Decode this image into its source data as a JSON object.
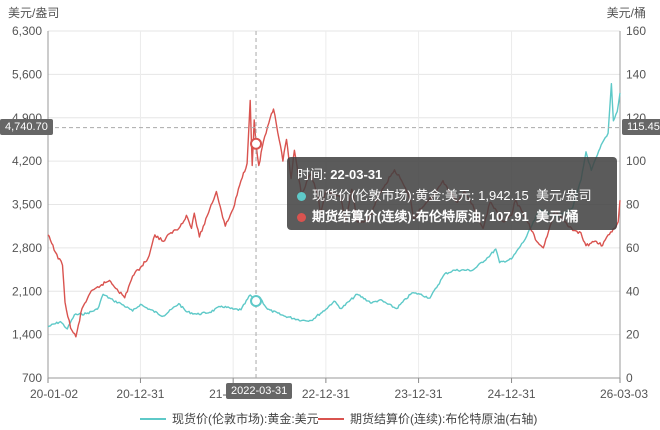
{
  "left_unit": "美元/盎司",
  "right_unit": "美元/桶",
  "chart_data": {
    "type": "line",
    "x_ticks": [
      "20-01-02",
      "20-12-31",
      "21-12-31",
      "22-12-31",
      "23-12-31",
      "24-12-31",
      "26-03-03"
    ],
    "y_left_ticks": [
      "700",
      "1,400",
      "2,100",
      "2,800",
      "3,500",
      "4,200",
      "4,900",
      "5,600",
      "6,300"
    ],
    "y_left_range": [
      700,
      6300
    ],
    "y_right_ticks": [
      "0",
      "20",
      "40",
      "60",
      "80",
      "100",
      "120",
      "140",
      "160"
    ],
    "y_right_range": [
      0,
      160
    ],
    "grid": true,
    "legend_position": "bottom",
    "series": [
      {
        "name": "现货价(伦敦市场):黄金:美元",
        "axis": "left",
        "color": "#5ec9c8",
        "points": [
          [
            "2020-01-02",
            1528
          ],
          [
            "2020-02-20",
            1610
          ],
          [
            "2020-03-18",
            1490
          ],
          [
            "2020-04-15",
            1720
          ],
          [
            "2020-06-01",
            1740
          ],
          [
            "2020-07-15",
            1810
          ],
          [
            "2020-08-06",
            2050
          ],
          [
            "2020-09-15",
            1950
          ],
          [
            "2020-10-15",
            1900
          ],
          [
            "2020-11-30",
            1780
          ],
          [
            "2020-12-31",
            1890
          ],
          [
            "2021-01-15",
            1850
          ],
          [
            "2021-03-31",
            1700
          ],
          [
            "2021-05-31",
            1900
          ],
          [
            "2021-06-30",
            1770
          ],
          [
            "2021-08-10",
            1730
          ],
          [
            "2021-09-30",
            1760
          ],
          [
            "2021-11-15",
            1860
          ],
          [
            "2021-12-31",
            1810
          ],
          [
            "2022-01-31",
            1800
          ],
          [
            "2022-03-08",
            2040
          ],
          [
            "2022-03-31",
            1942
          ],
          [
            "2022-04-18",
            1980
          ],
          [
            "2022-05-15",
            1810
          ],
          [
            "2022-07-20",
            1700
          ],
          [
            "2022-09-28",
            1630
          ],
          [
            "2022-11-03",
            1630
          ],
          [
            "2022-12-31",
            1810
          ],
          [
            "2023-02-01",
            1940
          ],
          [
            "2023-03-01",
            1820
          ],
          [
            "2023-05-03",
            2050
          ],
          [
            "2023-06-30",
            1910
          ],
          [
            "2023-07-31",
            1960
          ],
          [
            "2023-10-05",
            1820
          ],
          [
            "2023-12-04",
            2070
          ],
          [
            "2023-12-31",
            2060
          ],
          [
            "2024-02-14",
            1990
          ],
          [
            "2024-04-12",
            2380
          ],
          [
            "2024-05-20",
            2440
          ],
          [
            "2024-07-31",
            2440
          ],
          [
            "2024-09-30",
            2650
          ],
          [
            "2024-10-30",
            2780
          ],
          [
            "2024-11-14",
            2560
          ],
          [
            "2024-12-31",
            2620
          ],
          [
            "2025-02-24",
            2950
          ],
          [
            "2025-04-21",
            3420
          ],
          [
            "2025-06-30",
            3300
          ],
          [
            "2025-08-29",
            3450
          ],
          [
            "2025-10-01",
            3900
          ],
          [
            "2025-10-20",
            4350
          ],
          [
            "2025-11-10",
            4050
          ],
          [
            "2025-12-24",
            4500
          ],
          [
            "2026-01-15",
            4650
          ],
          [
            "2026-01-28",
            5450
          ],
          [
            "2026-02-05",
            4850
          ],
          [
            "2026-02-20",
            5000
          ],
          [
            "2026-03-03",
            5300
          ]
        ]
      },
      {
        "name": "期货结算价(连续):布伦特原油(右轴)",
        "axis": "right",
        "color": "#d9534f",
        "points": [
          [
            "2020-01-02",
            66
          ],
          [
            "2020-01-31",
            58
          ],
          [
            "2020-02-28",
            52
          ],
          [
            "2020-03-09",
            35
          ],
          [
            "2020-03-31",
            23
          ],
          [
            "2020-04-21",
            19
          ],
          [
            "2020-05-15",
            32
          ],
          [
            "2020-06-15",
            39
          ],
          [
            "2020-07-31",
            43
          ],
          [
            "2020-08-31",
            45
          ],
          [
            "2020-09-30",
            41
          ],
          [
            "2020-10-30",
            37
          ],
          [
            "2020-11-30",
            47
          ],
          [
            "2020-12-31",
            51
          ],
          [
            "2021-01-29",
            55
          ],
          [
            "2021-02-26",
            66
          ],
          [
            "2021-03-31",
            63
          ],
          [
            "2021-04-30",
            67
          ],
          [
            "2021-05-31",
            69
          ],
          [
            "2021-06-30",
            75
          ],
          [
            "2021-07-20",
            69
          ],
          [
            "2021-07-31",
            76
          ],
          [
            "2021-08-20",
            65
          ],
          [
            "2021-09-30",
            78
          ],
          [
            "2021-10-26",
            86
          ],
          [
            "2021-11-30",
            70
          ],
          [
            "2021-12-31",
            78
          ],
          [
            "2022-01-31",
            91
          ],
          [
            "2022-02-24",
            99
          ],
          [
            "2022-03-08",
            128
          ],
          [
            "2022-03-16",
            98
          ],
          [
            "2022-03-24",
            119
          ],
          [
            "2022-03-31",
            108
          ],
          [
            "2022-04-11",
            98
          ],
          [
            "2022-04-29",
            109
          ],
          [
            "2022-05-31",
            122
          ],
          [
            "2022-06-08",
            124
          ],
          [
            "2022-06-30",
            110
          ],
          [
            "2022-07-15",
            100
          ],
          [
            "2022-07-29",
            110
          ],
          [
            "2022-08-16",
            92
          ],
          [
            "2022-08-29",
            105
          ],
          [
            "2022-09-26",
            84
          ],
          [
            "2022-10-31",
            94
          ],
          [
            "2022-11-30",
            85
          ],
          [
            "2022-12-09",
            76
          ],
          [
            "2022-12-31",
            86
          ],
          [
            "2023-01-31",
            85
          ],
          [
            "2023-02-28",
            83
          ],
          [
            "2023-03-17",
            72
          ],
          [
            "2023-04-12",
            87
          ],
          [
            "2023-05-04",
            72
          ],
          [
            "2023-06-12",
            72
          ],
          [
            "2023-07-31",
            85
          ],
          [
            "2023-09-27",
            96
          ],
          [
            "2023-10-20",
            92
          ],
          [
            "2023-11-30",
            82
          ],
          [
            "2023-12-12",
            73
          ],
          [
            "2023-12-31",
            77
          ],
          [
            "2024-01-31",
            81
          ],
          [
            "2024-02-29",
            84
          ],
          [
            "2024-04-05",
            91
          ],
          [
            "2024-05-31",
            81
          ],
          [
            "2024-06-28",
            86
          ],
          [
            "2024-07-31",
            80
          ],
          [
            "2024-09-10",
            69
          ],
          [
            "2024-10-07",
            81
          ],
          [
            "2024-11-29",
            72
          ],
          [
            "2024-12-31",
            75
          ],
          [
            "2025-01-15",
            82
          ],
          [
            "2025-02-28",
            73
          ],
          [
            "2025-04-09",
            63
          ],
          [
            "2025-05-05",
            60
          ],
          [
            "2025-06-20",
            77
          ],
          [
            "2025-07-31",
            72
          ],
          [
            "2025-08-29",
            68
          ],
          [
            "2025-09-30",
            67
          ],
          [
            "2025-10-20",
            61
          ],
          [
            "2025-11-30",
            63
          ],
          [
            "2025-12-24",
            61
          ],
          [
            "2026-01-15",
            66
          ],
          [
            "2026-02-10",
            69
          ],
          [
            "2026-02-24",
            72
          ],
          [
            "2026-03-03",
            82
          ]
        ]
      }
    ],
    "crosshair": {
      "date_label": "2022-03-31",
      "left_value_label": "4,740.70",
      "right_value_label": "115.45"
    }
  },
  "tooltip": {
    "time_label": "时间:",
    "time_value": "22-03-31",
    "rows": [
      {
        "label": "现货价(伦敦市场):黄金:美元:",
        "value": "1,942.15",
        "unit": "美元/盎司",
        "color": "#5ec9c8"
      },
      {
        "label": "期货结算价(连续):布伦特原油:",
        "value": "107.91",
        "unit": "美元/桶",
        "color": "#d9534f"
      }
    ]
  },
  "legend": [
    {
      "label": "现货价(伦敦市场):黄金:美元",
      "color": "#5ec9c8"
    },
    {
      "label": "期货结算价(连续):布伦特原油(右轴)",
      "color": "#d9534f"
    }
  ]
}
